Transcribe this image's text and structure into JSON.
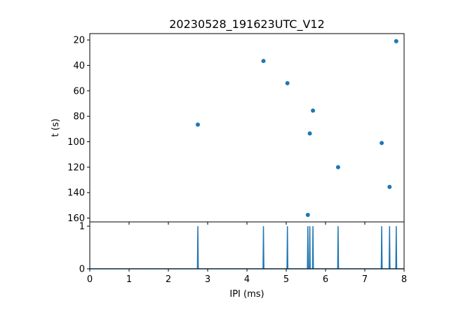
{
  "colors": {
    "series": "#1f77b4",
    "axes": "#000000",
    "background": "#ffffff"
  },
  "chart_data": [
    {
      "type": "scatter",
      "title": "20230528_191623UTC_V12",
      "xlabel": "",
      "ylabel": "t (s)",
      "xlim": [
        0,
        8
      ],
      "ylim": [
        163,
        15
      ],
      "y_inverted": true,
      "y_ticks": [
        20,
        40,
        60,
        80,
        100,
        120,
        140,
        160
      ],
      "x_tick_labels_shown": false,
      "grid": false,
      "points": [
        {
          "x": 2.75,
          "y": 86.5
        },
        {
          "x": 4.42,
          "y": 36.5
        },
        {
          "x": 5.03,
          "y": 54.0
        },
        {
          "x": 5.55,
          "y": 157.5
        },
        {
          "x": 5.6,
          "y": 93.5
        },
        {
          "x": 5.68,
          "y": 75.5
        },
        {
          "x": 6.32,
          "y": 120.0
        },
        {
          "x": 7.43,
          "y": 101.0
        },
        {
          "x": 7.63,
          "y": 135.5
        },
        {
          "x": 7.8,
          "y": 21.0
        }
      ]
    },
    {
      "type": "line",
      "title": "",
      "xlabel": "IPI (ms)",
      "ylabel": "",
      "xlim": [
        0,
        8
      ],
      "ylim": [
        0,
        1.1
      ],
      "x_ticks": [
        0,
        1,
        2,
        3,
        4,
        5,
        6,
        7,
        8
      ],
      "y_ticks": [
        0,
        1
      ],
      "grid": false,
      "baseline": 0,
      "spike_height": 1,
      "spikes_x": [
        2.75,
        4.42,
        5.03,
        5.55,
        5.6,
        5.68,
        6.32,
        7.43,
        7.63,
        7.8
      ]
    }
  ]
}
